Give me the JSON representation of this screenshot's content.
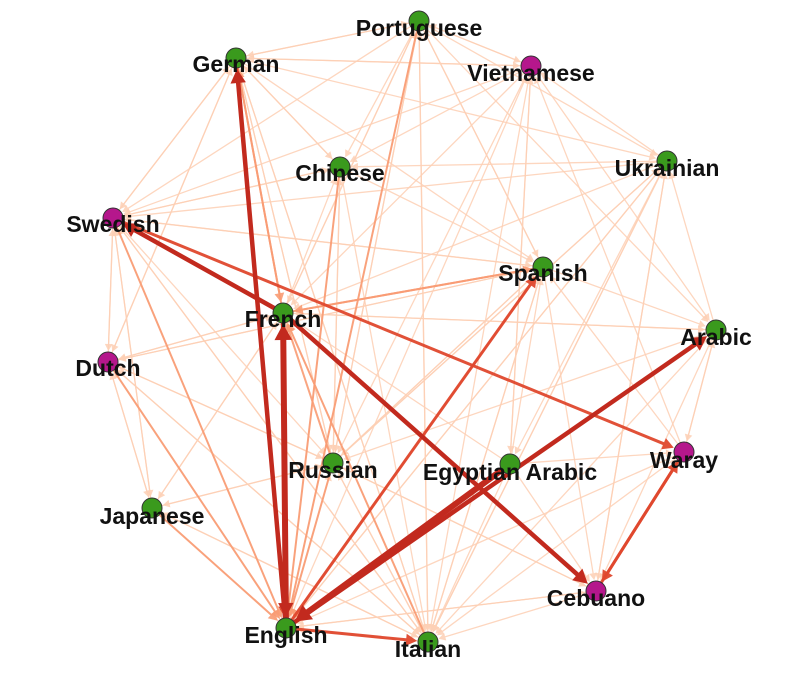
{
  "diagram": {
    "type": "directed-network",
    "colors": {
      "node_group_a": "#3a9a1d",
      "node_group_b": "#b5178c",
      "edge_weak": "#fdd0b5",
      "edge_mid": "#f99c74",
      "edge_strong": "#e0482e",
      "edge_strongest": "#c22a1e"
    },
    "nodes": [
      {
        "id": "portuguese",
        "label": "Portuguese",
        "group": "a"
      },
      {
        "id": "german",
        "label": "German",
        "group": "a"
      },
      {
        "id": "vietnamese",
        "label": "Vietnamese",
        "group": "b"
      },
      {
        "id": "chinese",
        "label": "Chinese",
        "group": "a"
      },
      {
        "id": "ukrainian",
        "label": "Ukrainian",
        "group": "a"
      },
      {
        "id": "swedish",
        "label": "Swedish",
        "group": "b"
      },
      {
        "id": "spanish",
        "label": "Spanish",
        "group": "a"
      },
      {
        "id": "french",
        "label": "French",
        "group": "a"
      },
      {
        "id": "arabic",
        "label": "Arabic",
        "group": "a"
      },
      {
        "id": "dutch",
        "label": "Dutch",
        "group": "b"
      },
      {
        "id": "waray",
        "label": "Waray",
        "group": "b"
      },
      {
        "id": "russian",
        "label": "Russian",
        "group": "a"
      },
      {
        "id": "egyptian_arabic",
        "label": "Egyptian Arabic",
        "group": "a"
      },
      {
        "id": "japanese",
        "label": "Japanese",
        "group": "a"
      },
      {
        "id": "cebuano",
        "label": "Cebuano",
        "group": "b"
      },
      {
        "id": "english",
        "label": "English",
        "group": "a"
      },
      {
        "id": "italian",
        "label": "Italian",
        "group": "a"
      }
    ],
    "edges": [
      {
        "from": "english",
        "to": "german",
        "weight": 4
      },
      {
        "from": "english",
        "to": "french",
        "weight": 5
      },
      {
        "from": "french",
        "to": "english",
        "weight": 4
      },
      {
        "from": "french",
        "to": "swedish",
        "weight": 4
      },
      {
        "from": "french",
        "to": "cebuano",
        "weight": 4
      },
      {
        "from": "egyptian_arabic",
        "to": "english",
        "weight": 5
      },
      {
        "from": "english",
        "to": "arabic",
        "weight": 4
      },
      {
        "from": "english",
        "to": "spanish",
        "weight": 3
      },
      {
        "from": "swedish",
        "to": "waray",
        "weight": 3
      },
      {
        "from": "english",
        "to": "italian",
        "weight": 3
      },
      {
        "from": "cebuano",
        "to": "waray",
        "weight": 3
      },
      {
        "from": "waray",
        "to": "cebuano",
        "weight": 3
      },
      {
        "from": "german",
        "to": "english",
        "weight": 3
      },
      {
        "from": "russian",
        "to": "english",
        "weight": 2
      },
      {
        "from": "spanish",
        "to": "english",
        "weight": 2
      },
      {
        "from": "chinese",
        "to": "english",
        "weight": 2
      },
      {
        "from": "portuguese",
        "to": "english",
        "weight": 2
      },
      {
        "from": "japanese",
        "to": "english",
        "weight": 2
      },
      {
        "from": "dutch",
        "to": "english",
        "weight": 2
      },
      {
        "from": "swedish",
        "to": "english",
        "weight": 2
      },
      {
        "from": "french",
        "to": "german",
        "weight": 2
      },
      {
        "from": "german",
        "to": "french",
        "weight": 2
      },
      {
        "from": "spanish",
        "to": "french",
        "weight": 2
      },
      {
        "from": "french",
        "to": "spanish",
        "weight": 2
      },
      {
        "from": "russian",
        "to": "french",
        "weight": 2
      },
      {
        "from": "italian",
        "to": "french",
        "weight": 2
      },
      {
        "from": "german",
        "to": "portuguese",
        "weight": 1
      },
      {
        "from": "portuguese",
        "to": "german",
        "weight": 1
      },
      {
        "from": "german",
        "to": "vietnamese",
        "weight": 1
      },
      {
        "from": "vietnamese",
        "to": "portuguese",
        "weight": 1
      },
      {
        "from": "ukrainian",
        "to": "vietnamese",
        "weight": 1
      },
      {
        "from": "arabic",
        "to": "ukrainian",
        "weight": 1
      },
      {
        "from": "waray",
        "to": "arabic",
        "weight": 1
      },
      {
        "from": "dutch",
        "to": "swedish",
        "weight": 1
      },
      {
        "from": "swedish",
        "to": "dutch",
        "weight": 1
      },
      {
        "from": "japanese",
        "to": "dutch",
        "weight": 1
      },
      {
        "from": "italian",
        "to": "japanese",
        "weight": 1
      },
      {
        "from": "cebuano",
        "to": "italian",
        "weight": 1
      },
      {
        "from": "german",
        "to": "swedish",
        "weight": 1
      },
      {
        "from": "chinese",
        "to": "german",
        "weight": 1
      },
      {
        "from": "russian",
        "to": "chinese",
        "weight": 1
      },
      {
        "from": "chinese",
        "to": "russian",
        "weight": 1
      },
      {
        "from": "russian",
        "to": "spanish",
        "weight": 1
      },
      {
        "from": "spanish",
        "to": "russian",
        "weight": 1
      },
      {
        "from": "egyptian_arabic",
        "to": "spanish",
        "weight": 1
      },
      {
        "from": "ukrainian",
        "to": "russian",
        "weight": 1
      },
      {
        "from": "russian",
        "to": "ukrainian",
        "weight": 1
      },
      {
        "from": "portuguese",
        "to": "spanish",
        "weight": 1
      },
      {
        "from": "spanish",
        "to": "portuguese",
        "weight": 1
      },
      {
        "from": "vietnamese",
        "to": "italian",
        "weight": 1
      },
      {
        "from": "ukrainian",
        "to": "italian",
        "weight": 1
      },
      {
        "from": "arabic",
        "to": "italian",
        "weight": 1
      },
      {
        "from": "arabic",
        "to": "cebuano",
        "weight": 1
      },
      {
        "from": "egyptian_arabic",
        "to": "cebuano",
        "weight": 1
      },
      {
        "from": "spanish",
        "to": "cebuano",
        "weight": 1
      },
      {
        "from": "german",
        "to": "italian",
        "weight": 1
      },
      {
        "from": "german",
        "to": "russian",
        "weight": 1
      },
      {
        "from": "german",
        "to": "spanish",
        "weight": 1
      },
      {
        "from": "portuguese",
        "to": "russian",
        "weight": 1
      },
      {
        "from": "portuguese",
        "to": "italian",
        "weight": 1
      },
      {
        "from": "portuguese",
        "to": "arabic",
        "weight": 1
      },
      {
        "from": "portuguese",
        "to": "ukrainian",
        "weight": 1
      },
      {
        "from": "vietnamese",
        "to": "french",
        "weight": 1
      },
      {
        "from": "vietnamese",
        "to": "arabic",
        "weight": 1
      },
      {
        "from": "vietnamese",
        "to": "egyptian_arabic",
        "weight": 1
      },
      {
        "from": "vietnamese",
        "to": "russian",
        "weight": 1
      },
      {
        "from": "chinese",
        "to": "italian",
        "weight": 1
      },
      {
        "from": "chinese",
        "to": "spanish",
        "weight": 1
      },
      {
        "from": "chinese",
        "to": "swedish",
        "weight": 1
      },
      {
        "from": "ukrainian",
        "to": "french",
        "weight": 1
      },
      {
        "from": "ukrainian",
        "to": "chinese",
        "weight": 1
      },
      {
        "from": "ukrainian",
        "to": "english",
        "weight": 1
      },
      {
        "from": "ukrainian",
        "to": "cebuano",
        "weight": 1
      },
      {
        "from": "ukrainian",
        "to": "swedish",
        "weight": 1
      },
      {
        "from": "ukrainian",
        "to": "egyptian_arabic",
        "weight": 1
      },
      {
        "from": "swedish",
        "to": "italian",
        "weight": 1
      },
      {
        "from": "swedish",
        "to": "russian",
        "weight": 1
      },
      {
        "from": "swedish",
        "to": "spanish",
        "weight": 1
      },
      {
        "from": "swedish",
        "to": "japanese",
        "weight": 1
      },
      {
        "from": "spanish",
        "to": "swedish",
        "weight": 1
      },
      {
        "from": "spanish",
        "to": "italian",
        "weight": 1
      },
      {
        "from": "spanish",
        "to": "dutch",
        "weight": 1
      },
      {
        "from": "spanish",
        "to": "arabic",
        "weight": 1
      },
      {
        "from": "french",
        "to": "arabic",
        "weight": 1
      },
      {
        "from": "french",
        "to": "dutch",
        "weight": 1
      },
      {
        "from": "french",
        "to": "italian",
        "weight": 1
      },
      {
        "from": "french",
        "to": "chinese",
        "weight": 1
      },
      {
        "from": "french",
        "to": "portuguese",
        "weight": 1
      },
      {
        "from": "french",
        "to": "japanese",
        "weight": 1
      },
      {
        "from": "arabic",
        "to": "french",
        "weight": 1
      },
      {
        "from": "arabic",
        "to": "russian",
        "weight": 1
      },
      {
        "from": "arabic",
        "to": "english",
        "weight": 1
      },
      {
        "from": "arabic",
        "to": "waray",
        "weight": 1
      },
      {
        "from": "dutch",
        "to": "french",
        "weight": 1
      },
      {
        "from": "dutch",
        "to": "russian",
        "weight": 1
      },
      {
        "from": "dutch",
        "to": "spanish",
        "weight": 1
      },
      {
        "from": "dutch",
        "to": "italian",
        "weight": 1
      },
      {
        "from": "waray",
        "to": "english",
        "weight": 1
      },
      {
        "from": "waray",
        "to": "italian",
        "weight": 1
      },
      {
        "from": "waray",
        "to": "spanish",
        "weight": 1
      },
      {
        "from": "waray",
        "to": "vietnamese",
        "weight": 1
      },
      {
        "from": "russian",
        "to": "italian",
        "weight": 1
      },
      {
        "from": "russian",
        "to": "german",
        "weight": 1
      },
      {
        "from": "russian",
        "to": "portuguese",
        "weight": 1
      },
      {
        "from": "russian",
        "to": "dutch",
        "weight": 1
      },
      {
        "from": "russian",
        "to": "japanese",
        "weight": 1
      },
      {
        "from": "russian",
        "to": "cebuano",
        "weight": 1
      },
      {
        "from": "egyptian_arabic",
        "to": "italian",
        "weight": 1
      },
      {
        "from": "egyptian_arabic",
        "to": "waray",
        "weight": 1
      },
      {
        "from": "egyptian_arabic",
        "to": "vietnamese",
        "weight": 1
      },
      {
        "from": "egyptian_arabic",
        "to": "french",
        "weight": 1
      },
      {
        "from": "japanese",
        "to": "french",
        "weight": 1
      },
      {
        "from": "japanese",
        "to": "italian",
        "weight": 1
      },
      {
        "from": "japanese",
        "to": "swedish",
        "weight": 1
      },
      {
        "from": "japanese",
        "to": "russian",
        "weight": 1
      },
      {
        "from": "cebuano",
        "to": "french",
        "weight": 1
      },
      {
        "from": "cebuano",
        "to": "english",
        "weight": 1
      },
      {
        "from": "cebuano",
        "to": "russian",
        "weight": 1
      },
      {
        "from": "cebuano",
        "to": "ukrainian",
        "weight": 1
      },
      {
        "from": "english",
        "to": "swedish",
        "weight": 1
      },
      {
        "from": "english",
        "to": "dutch",
        "weight": 1
      },
      {
        "from": "english",
        "to": "russian",
        "weight": 1
      },
      {
        "from": "english",
        "to": "chinese",
        "weight": 1
      },
      {
        "from": "english",
        "to": "portuguese",
        "weight": 1
      },
      {
        "from": "english",
        "to": "ukrainian",
        "weight": 1
      },
      {
        "from": "english",
        "to": "vietnamese",
        "weight": 1
      },
      {
        "from": "english",
        "to": "japanese",
        "weight": 1
      },
      {
        "from": "english",
        "to": "cebuano",
        "weight": 1
      },
      {
        "from": "italian",
        "to": "russian",
        "weight": 1
      },
      {
        "from": "italian",
        "to": "spanish",
        "weight": 1
      },
      {
        "from": "italian",
        "to": "german",
        "weight": 1
      },
      {
        "from": "italian",
        "to": "swedish",
        "weight": 1
      },
      {
        "from": "italian",
        "to": "dutch",
        "weight": 1
      },
      {
        "from": "italian",
        "to": "english",
        "weight": 1
      },
      {
        "from": "italian",
        "to": "portuguese",
        "weight": 1
      },
      {
        "from": "italian",
        "to": "ukrainian",
        "weight": 1
      },
      {
        "from": "german",
        "to": "chinese",
        "weight": 1
      },
      {
        "from": "german",
        "to": "dutch",
        "weight": 1
      },
      {
        "from": "german",
        "to": "ukrainian",
        "weight": 1
      },
      {
        "from": "vietnamese",
        "to": "german",
        "weight": 1
      },
      {
        "from": "vietnamese",
        "to": "swedish",
        "weight": 1
      },
      {
        "from": "vietnamese",
        "to": "chinese",
        "weight": 1
      },
      {
        "from": "portuguese",
        "to": "vietnamese",
        "weight": 1
      },
      {
        "from": "portuguese",
        "to": "french",
        "weight": 1
      },
      {
        "from": "portuguese",
        "to": "swedish",
        "weight": 1
      },
      {
        "from": "portuguese",
        "to": "chinese",
        "weight": 1
      },
      {
        "from": "dutch",
        "to": "german",
        "weight": 1
      },
      {
        "from": "dutch",
        "to": "japanese",
        "weight": 1
      },
      {
        "from": "swedish",
        "to": "german",
        "weight": 1
      },
      {
        "from": "swedish",
        "to": "chinese",
        "weight": 1
      }
    ]
  }
}
